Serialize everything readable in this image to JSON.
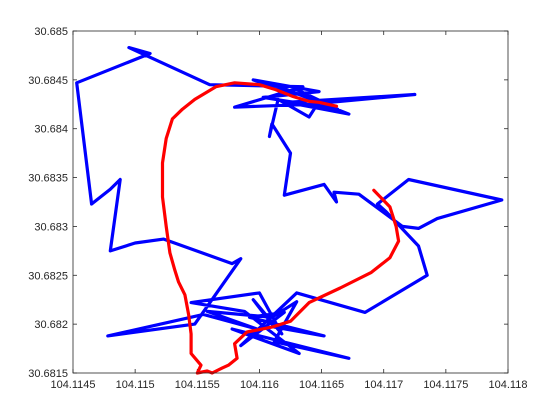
{
  "chart_data": {
    "type": "line",
    "title": "",
    "xlabel": "",
    "ylabel": "",
    "xlim": [
      104.1145,
      104.118
    ],
    "ylim": [
      30.6815,
      30.685
    ],
    "grid": false,
    "x_ticks": [
      104.1145,
      104.115,
      104.1155,
      104.116,
      104.1165,
      104.117,
      104.1175,
      104.118
    ],
    "x_tick_labels": [
      "104.1145",
      "104.115",
      "104.1155",
      "104.116",
      "104.1165",
      "104.117",
      "104.1175",
      "104.118"
    ],
    "y_ticks": [
      30.6815,
      30.682,
      30.6825,
      30.683,
      30.6835,
      30.684,
      30.6845,
      30.685
    ],
    "y_tick_labels": [
      "30.6815",
      "30.682",
      "30.6825",
      "30.683",
      "30.6835",
      "30.684",
      "30.6845",
      "30.685"
    ],
    "series": [
      {
        "color": "#0000ff",
        "points": [
          [
            104.11627,
            30.68435
          ],
          [
            104.11595,
            30.6845
          ],
          [
            104.11648,
            30.68438
          ],
          [
            104.11603,
            30.68432
          ],
          [
            104.11663,
            30.6842
          ],
          [
            104.11612,
            30.68445
          ],
          [
            104.11672,
            30.68415
          ],
          [
            104.11622,
            30.68427
          ],
          [
            104.11725,
            30.68435
          ],
          [
            104.1164,
            30.68425
          ],
          [
            104.1158,
            30.68422
          ],
          [
            104.11635,
            30.68443
          ],
          [
            104.1156,
            30.68445
          ],
          [
            104.11495,
            30.68483
          ],
          [
            104.11512,
            30.68477
          ],
          [
            104.11453,
            30.68447
          ],
          [
            104.11465,
            30.68323
          ],
          [
            104.1148,
            30.68338
          ],
          [
            104.11488,
            30.68348
          ],
          [
            104.1148,
            30.68275
          ],
          [
            104.115,
            30.68283
          ],
          [
            104.11523,
            30.68287
          ],
          [
            104.11578,
            30.68262
          ],
          [
            104.11585,
            30.68267
          ],
          [
            104.11548,
            30.682
          ],
          [
            104.11478,
            30.68188
          ],
          [
            104.11555,
            30.6821
          ],
          [
            104.11598,
            30.68195
          ],
          [
            104.11558,
            30.68213
          ],
          [
            104.1161,
            30.68207
          ],
          [
            104.1163,
            30.68223
          ],
          [
            104.11612,
            30.68182
          ],
          [
            104.11672,
            30.68165
          ],
          [
            104.11578,
            30.68195
          ],
          [
            104.11632,
            30.6817
          ],
          [
            104.11588,
            30.68213
          ],
          [
            104.11545,
            30.68222
          ],
          [
            104.116,
            30.68232
          ],
          [
            104.11618,
            30.6819
          ],
          [
            104.11595,
            30.68225
          ],
          [
            104.11612,
            30.68197
          ],
          [
            104.11652,
            30.68188
          ],
          [
            104.11592,
            30.68207
          ],
          [
            104.1162,
            30.68212
          ],
          [
            104.11585,
            30.68178
          ],
          [
            104.1163,
            30.68232
          ],
          [
            104.11685,
            30.68212
          ],
          [
            104.11735,
            30.6825
          ],
          [
            104.11728,
            30.6828
          ],
          [
            104.11702,
            30.68315
          ],
          [
            104.11695,
            30.68323
          ],
          [
            104.1172,
            30.68348
          ],
          [
            104.11795,
            30.68327
          ],
          [
            104.11743,
            30.68308
          ],
          [
            104.11728,
            30.68298
          ],
          [
            104.11715,
            30.683
          ],
          [
            104.1168,
            30.68333
          ],
          [
            104.1166,
            30.68335
          ],
          [
            104.11662,
            30.68325
          ],
          [
            104.11652,
            30.68343
          ],
          [
            104.1162,
            30.68332
          ],
          [
            104.11625,
            30.68375
          ],
          [
            104.1161,
            30.68405
          ],
          [
            104.11608,
            30.68392
          ],
          [
            104.11615,
            30.6843
          ],
          [
            104.1164,
            30.68412
          ],
          [
            104.11648,
            30.68428
          ],
          [
            104.1163,
            30.6844
          ],
          [
            104.11655,
            30.68425
          ]
        ]
      },
      {
        "color": "#ff0000",
        "points": [
          [
            104.11692,
            30.68337
          ],
          [
            104.11705,
            30.6832
          ],
          [
            104.1171,
            30.683
          ],
          [
            104.11712,
            30.68285
          ],
          [
            104.11705,
            30.68268
          ],
          [
            104.1169,
            30.68253
          ],
          [
            104.11665,
            30.68237
          ],
          [
            104.1164,
            30.68222
          ],
          [
            104.11625,
            30.68203
          ],
          [
            104.1161,
            30.68197
          ],
          [
            104.1159,
            30.68192
          ],
          [
            104.1158,
            30.6818
          ],
          [
            104.11582,
            30.68165
          ],
          [
            104.11575,
            30.68158
          ],
          [
            104.1157,
            30.68155
          ],
          [
            104.11562,
            30.6815
          ],
          [
            104.11558,
            30.68152
          ],
          [
            104.1155,
            30.6815
          ],
          [
            104.11553,
            30.68158
          ],
          [
            104.11545,
            30.6817
          ],
          [
            104.11545,
            30.6819
          ],
          [
            104.11543,
            30.6821
          ],
          [
            104.1154,
            30.6823
          ],
          [
            104.11535,
            30.68243
          ],
          [
            104.11532,
            30.68255
          ],
          [
            104.11528,
            30.68273
          ],
          [
            104.11525,
            30.683
          ],
          [
            104.11522,
            30.6833
          ],
          [
            104.11522,
            30.68365
          ],
          [
            104.11525,
            30.6839
          ],
          [
            104.1153,
            30.6841
          ],
          [
            104.11538,
            30.6842
          ],
          [
            104.11548,
            30.6843
          ],
          [
            104.11565,
            30.68443
          ],
          [
            104.1158,
            30.68447
          ],
          [
            104.116,
            30.68445
          ],
          [
            104.11613,
            30.6844
          ],
          [
            104.11627,
            30.68433
          ],
          [
            104.1164,
            30.68428
          ],
          [
            104.11648,
            30.68427
          ],
          [
            104.11655,
            30.68425
          ],
          [
            104.11662,
            30.68423
          ]
        ]
      }
    ]
  }
}
